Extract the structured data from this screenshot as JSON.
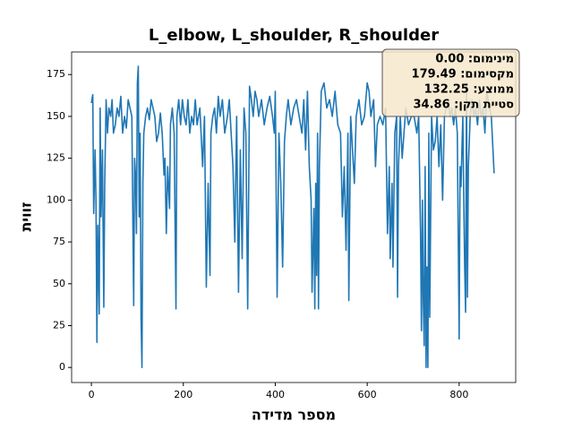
{
  "chart_data": {
    "type": "line",
    "title": "L_elbow, L_shoulder, R_shoulder",
    "x_label": "מספר מדידה",
    "y_label": "זווית",
    "annotations": [
      "מינימום: 0.00",
      "מקסימום: 179.49",
      "ממוצע: 132.25",
      "סטיית תקן: 34.86"
    ],
    "color": "#1f77b4",
    "xlim": [
      -43,
      923
    ],
    "ylim": [
      -9,
      188.5
    ],
    "xticks": [
      0,
      200,
      400,
      600,
      800
    ],
    "yticks": [
      0,
      25,
      50,
      75,
      100,
      125,
      150,
      175
    ],
    "x": [
      0,
      3,
      5,
      8,
      10,
      12,
      14,
      17,
      19,
      21,
      24,
      27,
      29,
      32,
      35,
      38,
      42,
      45,
      48,
      52,
      56,
      60,
      64,
      68,
      72,
      76,
      80,
      84,
      88,
      92,
      94,
      96,
      98,
      100,
      102,
      104,
      106,
      108,
      110,
      112,
      114,
      118,
      122,
      126,
      130,
      134,
      138,
      142,
      146,
      150,
      154,
      158,
      160,
      163,
      166,
      170,
      172,
      176,
      180,
      184,
      186,
      190,
      194,
      198,
      202,
      206,
      210,
      214,
      218,
      222,
      226,
      230,
      236,
      242,
      246,
      250,
      254,
      258,
      260,
      264,
      268,
      272,
      276,
      280,
      285,
      290,
      296,
      300,
      304,
      308,
      312,
      316,
      320,
      324,
      328,
      332,
      336,
      340,
      344,
      348,
      352,
      356,
      360,
      364,
      370,
      376,
      382,
      388,
      394,
      398,
      400,
      404,
      408,
      412,
      416,
      420,
      424,
      428,
      434,
      440,
      446,
      452,
      458,
      462,
      466,
      470,
      474,
      478,
      480,
      484,
      486,
      488,
      490,
      492,
      494,
      496,
      500,
      506,
      512,
      518,
      524,
      530,
      536,
      542,
      546,
      550,
      554,
      558,
      560,
      564,
      568,
      572,
      576,
      582,
      588,
      594,
      600,
      604,
      608,
      614,
      618,
      622,
      628,
      634,
      640,
      644,
      648,
      650,
      654,
      656,
      660,
      664,
      666,
      668,
      672,
      676,
      680,
      684,
      690,
      696,
      702,
      708,
      712,
      716,
      718,
      720,
      722,
      724,
      726,
      728,
      730,
      732,
      734,
      736,
      740,
      744,
      748,
      752,
      756,
      760,
      764,
      768,
      772,
      776,
      780,
      784,
      788,
      792,
      796,
      800,
      802,
      804,
      806,
      808,
      810,
      812,
      814,
      816,
      818,
      820,
      824,
      828,
      832,
      836,
      840,
      844,
      848,
      852,
      856,
      860,
      866,
      870,
      876
    ],
    "values": [
      158,
      163,
      92,
      130,
      100,
      15,
      85,
      32,
      155,
      90,
      130,
      36,
      110,
      160,
      140,
      155,
      150,
      160,
      140,
      145,
      155,
      150,
      162,
      140,
      150,
      143,
      160,
      155,
      150,
      37,
      125,
      115,
      80,
      170,
      180,
      90,
      140,
      30,
      0,
      110,
      140,
      150,
      155,
      148,
      160,
      155,
      150,
      135,
      140,
      152,
      140,
      115,
      125,
      80,
      120,
      95,
      145,
      155,
      140,
      35,
      150,
      160,
      145,
      160,
      150,
      145,
      160,
      140,
      150,
      145,
      160,
      145,
      155,
      120,
      150,
      48,
      110,
      55,
      140,
      150,
      155,
      140,
      162,
      150,
      160,
      140,
      150,
      160,
      140,
      120,
      75,
      150,
      45,
      130,
      65,
      155,
      140,
      35,
      168,
      160,
      150,
      165,
      160,
      150,
      160,
      145,
      155,
      162,
      150,
      140,
      165,
      42,
      140,
      110,
      60,
      135,
      150,
      160,
      145,
      155,
      160,
      150,
      140,
      160,
      130,
      165,
      120,
      100,
      45,
      95,
      35,
      110,
      55,
      140,
      35,
      120,
      165,
      170,
      155,
      160,
      150,
      165,
      145,
      140,
      90,
      120,
      70,
      140,
      40,
      150,
      130,
      110,
      150,
      160,
      145,
      150,
      170,
      165,
      150,
      160,
      120,
      145,
      150,
      145,
      155,
      80,
      120,
      65,
      110,
      60,
      140,
      150,
      42,
      120,
      150,
      125,
      140,
      155,
      145,
      150,
      150,
      140,
      150,
      80,
      22,
      100,
      40,
      13,
      120,
      0,
      60,
      0,
      140,
      30,
      150,
      130,
      135,
      150,
      120,
      145,
      100,
      150,
      155,
      160,
      150,
      155,
      145,
      155,
      140,
      17,
      120,
      108,
      130,
      150,
      100,
      60,
      33,
      170,
      42,
      120,
      150,
      160,
      150,
      155,
      145,
      160,
      150,
      155,
      140,
      165,
      155,
      150,
      116
    ]
  }
}
